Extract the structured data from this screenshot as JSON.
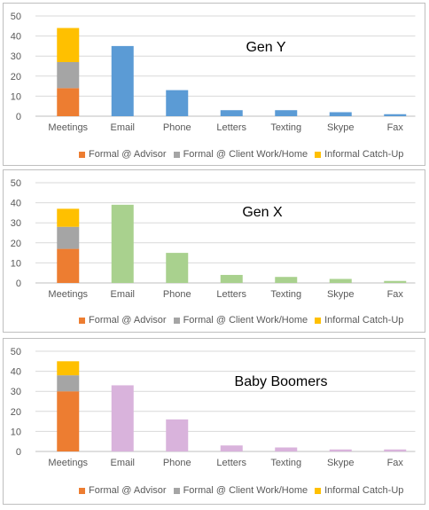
{
  "colors": {
    "formal_advisor": "#ED7D31",
    "formal_client": "#A5A5A5",
    "informal": "#FFC000",
    "gen_y_bar": "#5B9BD5",
    "gen_x_bar": "#A9D18E",
    "boomers_bar": "#D9B3DC"
  },
  "chart_data": [
    {
      "type": "bar",
      "title": "Gen Y",
      "categories": [
        "Meetings",
        "Email",
        "Phone",
        "Letters",
        "Texting",
        "Skype",
        "Fax"
      ],
      "meetings_breakdown": [
        {
          "name": "Formal @ Advisor",
          "value": 14
        },
        {
          "name": "Formal @ Client Work/Home",
          "value": 13
        },
        {
          "name": "Informal Catch-Up",
          "value": 17
        }
      ],
      "values": [
        44,
        35,
        13,
        3,
        3,
        2,
        1
      ],
      "ylim": [
        0,
        50
      ],
      "yticks": [
        "0",
        "10",
        "20",
        "30",
        "40",
        "50"
      ],
      "legend": [
        "Formal @ Advisor",
        "Formal @ Client Work/Home",
        "Informal Catch-Up"
      ]
    },
    {
      "type": "bar",
      "title": "Gen X",
      "categories": [
        "Meetings",
        "Email",
        "Phone",
        "Letters",
        "Texting",
        "Skype",
        "Fax"
      ],
      "meetings_breakdown": [
        {
          "name": "Formal @ Advisor",
          "value": 17
        },
        {
          "name": "Formal @ Client Work/Home",
          "value": 11
        },
        {
          "name": "Informal Catch-Up",
          "value": 9
        }
      ],
      "values": [
        37,
        39,
        15,
        4,
        3,
        2,
        1
      ],
      "ylim": [
        0,
        50
      ],
      "yticks": [
        "0",
        "10",
        "20",
        "30",
        "40",
        "50"
      ],
      "legend": [
        "Formal @ Advisor",
        "Formal @ Client Work/Home",
        "Informal Catch-Up"
      ]
    },
    {
      "type": "bar",
      "title": "Baby Boomers",
      "categories": [
        "Meetings",
        "Email",
        "Phone",
        "Letters",
        "Texting",
        "Skype",
        "Fax"
      ],
      "meetings_breakdown": [
        {
          "name": "Formal @ Advisor",
          "value": 30
        },
        {
          "name": "Formal @ Client Work/Home",
          "value": 8
        },
        {
          "name": "Informal Catch-Up",
          "value": 7
        }
      ],
      "values": [
        45,
        33,
        16,
        3,
        2,
        1,
        1
      ],
      "ylim": [
        0,
        50
      ],
      "yticks": [
        "0",
        "10",
        "20",
        "30",
        "40",
        "50"
      ],
      "legend": [
        "Formal @ Advisor",
        "Formal @ Client Work/Home",
        "Informal Catch-Up"
      ]
    }
  ]
}
